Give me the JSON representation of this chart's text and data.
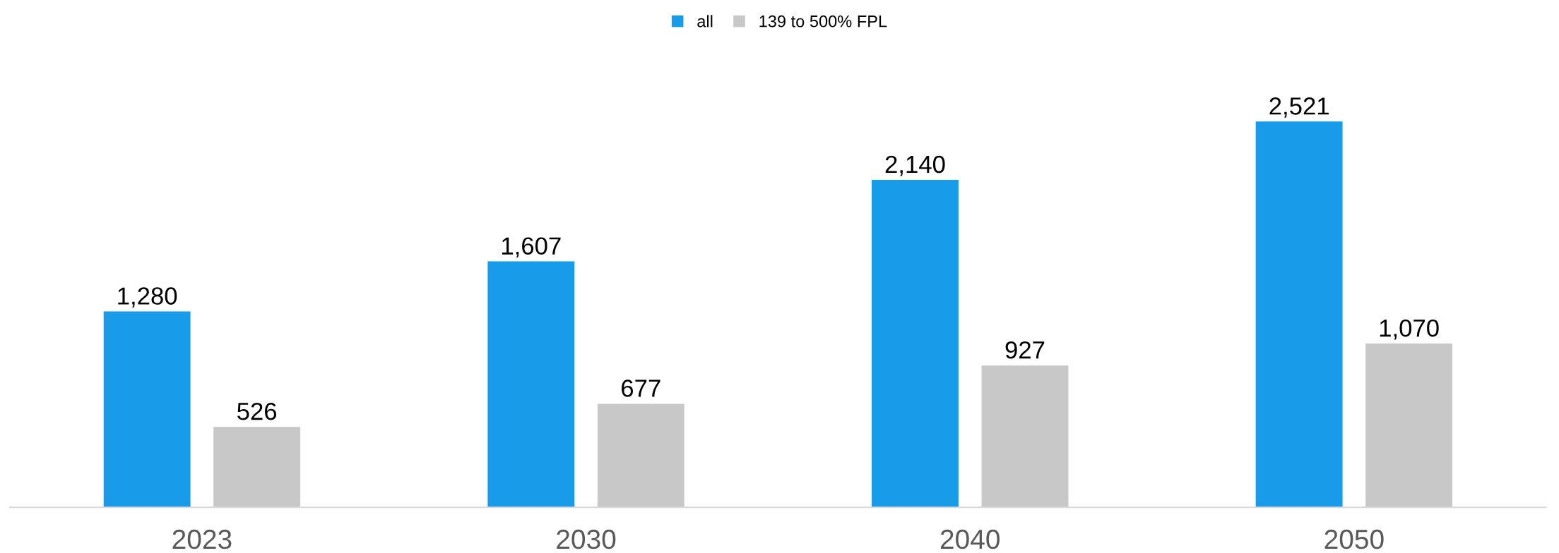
{
  "chart_data": {
    "type": "bar",
    "categories": [
      "2023",
      "2030",
      "2040",
      "2050"
    ],
    "series": [
      {
        "name": "all",
        "color": "#189be8",
        "values": [
          1280,
          1607,
          2140,
          2521
        ],
        "value_labels": [
          "1,280",
          "1,607",
          "2,140",
          "2,521"
        ]
      },
      {
        "name": "139 to 500% FPL",
        "color": "#c8c8c8",
        "values": [
          526,
          677,
          927,
          1070
        ],
        "value_labels": [
          "526",
          "677",
          "927",
          "1,070"
        ]
      }
    ],
    "legend": "top",
    "grid": false
  }
}
